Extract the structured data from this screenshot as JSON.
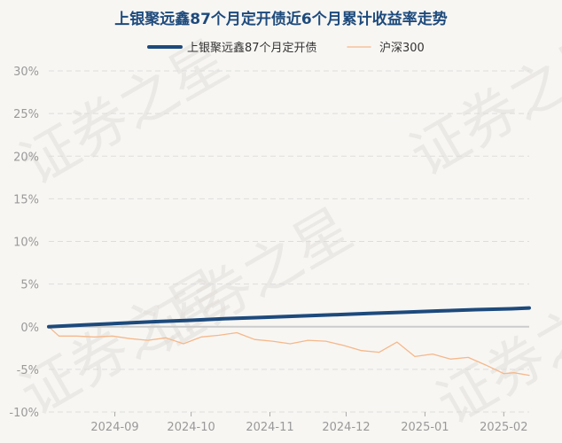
{
  "chart_data": {
    "type": "line",
    "title": "上银聚远鑫87个月定开债近6个月累计收益率走势",
    "watermark": "证券之星",
    "legend_position": "top-center",
    "grid": true,
    "ylim": [
      -10,
      30
    ],
    "y_ticks": [
      "30%",
      "25%",
      "20%",
      "15%",
      "10%",
      "5%",
      "0%",
      "-5%",
      "-10%"
    ],
    "y_tick_values": [
      30,
      25,
      20,
      15,
      10,
      5,
      0,
      -5,
      -10
    ],
    "x_range": [
      "2024-08-06",
      "2025-02-11"
    ],
    "x_ticks": [
      {
        "label": "2024-09",
        "date": "2024-09-01"
      },
      {
        "label": "2024-10",
        "date": "2024-10-01"
      },
      {
        "label": "2024-11",
        "date": "2024-11-01"
      },
      {
        "label": "2024-12",
        "date": "2024-12-01"
      },
      {
        "label": "2025-01",
        "date": "2025-01-01"
      },
      {
        "label": "2025-02",
        "date": "2025-02-01"
      }
    ],
    "series": [
      {
        "name": "上银聚远鑫87个月定开债",
        "color": "#1d4a7c",
        "points": [
          [
            "2024-08-06",
            0.0
          ],
          [
            "2024-08-20",
            0.2
          ],
          [
            "2024-09-03",
            0.4
          ],
          [
            "2024-09-17",
            0.6
          ],
          [
            "2024-10-01",
            0.75
          ],
          [
            "2024-10-15",
            0.95
          ],
          [
            "2024-10-29",
            1.1
          ],
          [
            "2024-11-12",
            1.25
          ],
          [
            "2024-11-26",
            1.4
          ],
          [
            "2024-12-10",
            1.55
          ],
          [
            "2024-12-24",
            1.7
          ],
          [
            "2025-01-07",
            1.85
          ],
          [
            "2025-01-21",
            2.0
          ],
          [
            "2025-02-04",
            2.1
          ],
          [
            "2025-02-11",
            2.2
          ]
        ]
      },
      {
        "name": "沪深300",
        "color": "#f5b88a",
        "points": [
          [
            "2024-08-06",
            0.0
          ],
          [
            "2024-08-10",
            -1.1
          ],
          [
            "2024-08-17",
            -1.1
          ],
          [
            "2024-08-24",
            -1.2
          ],
          [
            "2024-08-31",
            -1.1
          ],
          [
            "2024-09-07",
            -1.4
          ],
          [
            "2024-09-14",
            -1.6
          ],
          [
            "2024-09-21",
            -1.3
          ],
          [
            "2024-09-28",
            -2.0
          ],
          [
            "2024-10-05",
            -1.2
          ],
          [
            "2024-10-12",
            -1.0
          ],
          [
            "2024-10-19",
            -0.7
          ],
          [
            "2024-10-26",
            -1.5
          ],
          [
            "2024-11-02",
            -1.7
          ],
          [
            "2024-11-09",
            -2.0
          ],
          [
            "2024-11-16",
            -1.6
          ],
          [
            "2024-11-23",
            -1.7
          ],
          [
            "2024-11-30",
            -2.2
          ],
          [
            "2024-12-07",
            -2.8
          ],
          [
            "2024-12-14",
            -3.0
          ],
          [
            "2024-12-21",
            -1.8
          ],
          [
            "2024-12-28",
            -3.5
          ],
          [
            "2025-01-04",
            -3.2
          ],
          [
            "2025-01-11",
            -3.8
          ],
          [
            "2025-01-18",
            -3.6
          ],
          [
            "2025-01-25",
            -4.5
          ],
          [
            "2025-02-01",
            -5.5
          ],
          [
            "2025-02-05",
            -5.4
          ],
          [
            "2025-02-11",
            -5.7
          ]
        ]
      }
    ]
  }
}
